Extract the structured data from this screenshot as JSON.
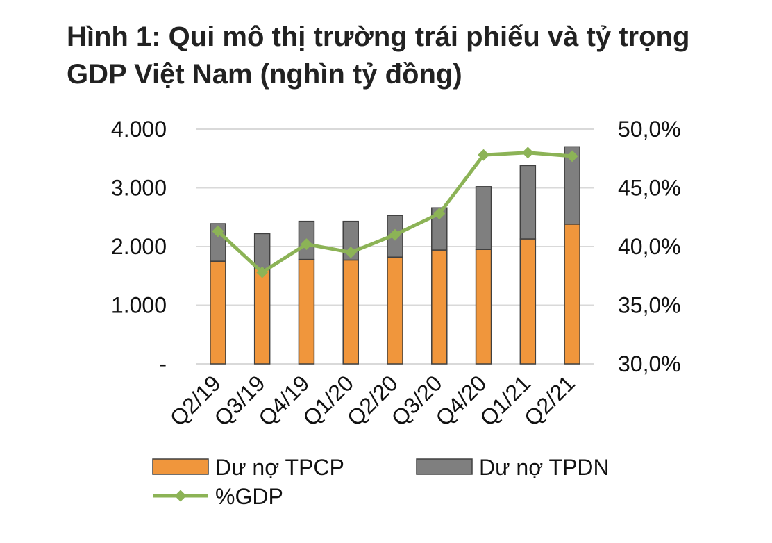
{
  "chart_data": {
    "type": "bar",
    "title": "Hình 1: Qui mô thị trường trái phiếu và tỷ trọng GDP Việt Nam (nghìn tỷ đồng)",
    "categories": [
      "Q2/19",
      "Q3/19",
      "Q4/19",
      "Q1/20",
      "Q2/20",
      "Q3/20",
      "Q4/20",
      "Q1/21",
      "Q2/21"
    ],
    "stacked": true,
    "series": [
      {
        "name": "Dư nợ TPCP",
        "type": "bar",
        "axis": "left",
        "color": "#f0963c",
        "values": [
          1750,
          1620,
          1780,
          1770,
          1820,
          1940,
          1950,
          2130,
          2380
        ]
      },
      {
        "name": "Dư nợ TPDN",
        "type": "bar",
        "axis": "left",
        "color": "#7f7f7f",
        "values": [
          640,
          600,
          650,
          660,
          710,
          720,
          1070,
          1250,
          1320
        ]
      },
      {
        "name": "%GDP",
        "type": "line",
        "axis": "right",
        "color": "#8cb356",
        "values": [
          41.3,
          37.8,
          40.2,
          39.5,
          41.0,
          42.8,
          47.8,
          48.0,
          47.7
        ]
      }
    ],
    "y_left": {
      "ylim": [
        0,
        4000
      ],
      "ticks": [
        0,
        1000,
        2000,
        3000,
        4000
      ],
      "tick_labels": [
        "-",
        "1.000",
        "2.000",
        "3.000",
        "4.000"
      ]
    },
    "y_right": {
      "ylim": [
        30,
        50
      ],
      "ticks": [
        30,
        35,
        40,
        45,
        50
      ],
      "tick_labels": [
        "30,0%",
        "35,0%",
        "40,0%",
        "45,0%",
        "50,0%"
      ]
    },
    "grid": true,
    "legend_position": "bottom"
  }
}
